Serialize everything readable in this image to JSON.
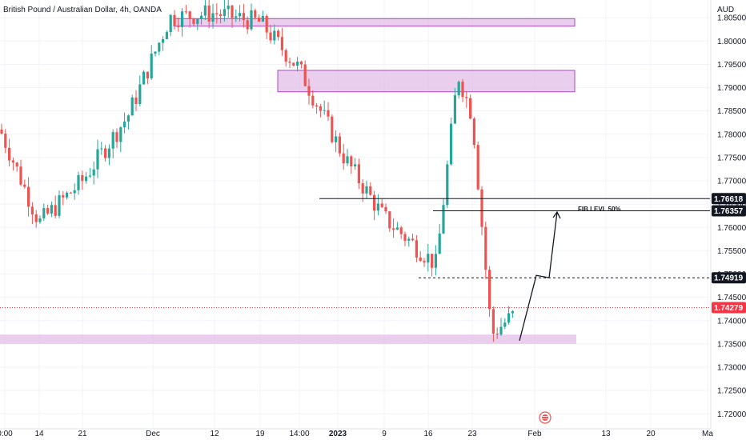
{
  "chart_title": "British Pound / Australian Dollar, 4h, OANDA",
  "currency_label": "AUD",
  "colors": {
    "up": "#26a69a",
    "down": "#ef5350",
    "zone_fill": "#e1bee7",
    "zone_stroke": "#ab47bc",
    "grid": "#f0f3fa",
    "current_price": "#f23645",
    "tag_bg": "#131722",
    "text": "#131722"
  },
  "chart_data": {
    "type": "candlestick",
    "title": "British Pound / Australian Dollar, 4h, OANDA",
    "ylabel": "AUD",
    "ylim": [
      1.7185,
      1.8088
    ],
    "grid": true,
    "y_ticks": [
      "1.80500",
      "1.80000",
      "1.79500",
      "1.79000",
      "1.78500",
      "1.78000",
      "1.77500",
      "1.77000",
      "1.76500",
      "1.76000",
      "1.75500",
      "1.75000",
      "1.74500",
      "1.74000",
      "1.73500",
      "1.73000",
      "1.72500",
      "1.72000"
    ],
    "x_ticks": [
      "0:00",
      "14",
      "21",
      "Dec",
      "12",
      "19",
      "14:00",
      "2023",
      "9",
      "16",
      "23",
      "Feb",
      "13",
      "20",
      "Ma"
    ],
    "price_labels": [
      "1.76618",
      "1.76357",
      "1.74919",
      "1.74279"
    ],
    "current_price_label": "1.74279",
    "annotation": "FIB LEVL 50%",
    "series": [
      {
        "x": [
          "Nov 11",
          "Nov 14",
          "Nov 21",
          "Nov 28",
          "Dec 5",
          "Dec 12",
          "Dec 19",
          "Dec 26",
          "Jan 2",
          "Jan 9",
          "Jan 16",
          "Jan 20",
          "Jan 23",
          "Jan 25",
          "Jan 27"
        ],
        "values": [
          1.781,
          1.761,
          1.77,
          1.784,
          1.805,
          1.806,
          1.804,
          1.794,
          1.775,
          1.762,
          1.752,
          1.793,
          1.784,
          1.737,
          1.741
        ]
      }
    ],
    "zones": [
      {
        "top": 1.8048,
        "bottom": 1.8032
      },
      {
        "top": 1.7937,
        "bottom": 1.7891
      },
      {
        "top": 1.737,
        "bottom": 1.735
      }
    ],
    "levels": [
      1.76618,
      1.76357,
      1.74919,
      1.74279
    ],
    "projection": [
      1.7357,
      1.7497,
      1.7492,
      1.7633
    ]
  }
}
